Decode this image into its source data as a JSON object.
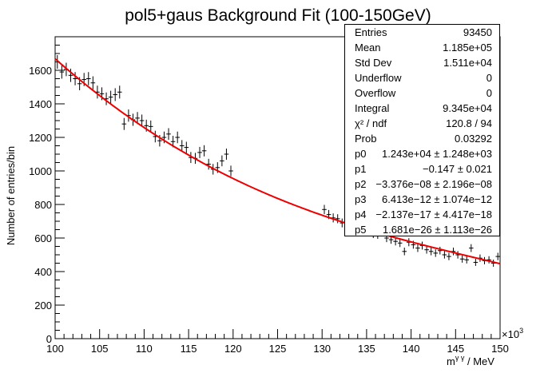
{
  "chart_data": {
    "type": "scatter",
    "title": "pol5+gaus Background Fit (100-150GeV)",
    "xlabel": "m",
    "xlabel_sup": "γ γ",
    "xlabel_unit": " / MeV",
    "ylabel": "Number of entries/bin",
    "x_exponent_base": "×10",
    "x_exponent": "3",
    "xlim": [
      100000,
      150000
    ],
    "ylim": [
      0,
      1800
    ],
    "x_ticks": [
      100,
      105,
      110,
      115,
      120,
      125,
      130,
      135,
      140,
      145,
      150
    ],
    "x_tick_step_minor": 1,
    "y_ticks": [
      0,
      200,
      400,
      600,
      800,
      1000,
      1200,
      1400,
      1600
    ],
    "y_tick_step_minor": 50,
    "grid": false,
    "legend": "top-right stats box",
    "colors": {
      "fit": "#ee0000",
      "points": "#000000"
    },
    "series": [
      {
        "type": "errorbar",
        "x": [
          100250,
          100750,
          101250,
          101750,
          102250,
          102750,
          103250,
          103750,
          104250,
          104750,
          105250,
          105750,
          106250,
          106750,
          107250,
          107750,
          108250,
          108750,
          109250,
          109750,
          110250,
          110750,
          111250,
          111750,
          112250,
          112750,
          113250,
          113750,
          114250,
          114750,
          115250,
          115750,
          116250,
          116750,
          117250,
          117750,
          118250,
          118750,
          119250,
          119750,
          130250,
          130750,
          131250,
          131750,
          132250,
          132750,
          133250,
          133750,
          134250,
          134750,
          135250,
          135750,
          136250,
          136750,
          137250,
          137750,
          138250,
          138750,
          139250,
          139750,
          140250,
          140750,
          141250,
          141750,
          142250,
          142750,
          143250,
          143750,
          144250,
          144750,
          145250,
          145750,
          146250,
          146750,
          147250,
          147750,
          148250,
          148750,
          149250,
          149750
        ],
        "y": [
          1650,
          1590,
          1605,
          1570,
          1550,
          1520,
          1545,
          1550,
          1525,
          1470,
          1460,
          1430,
          1440,
          1455,
          1470,
          1280,
          1330,
          1305,
          1315,
          1300,
          1270,
          1265,
          1205,
          1180,
          1200,
          1220,
          1175,
          1200,
          1150,
          1140,
          1080,
          1075,
          1110,
          1120,
          1040,
          1010,
          1020,
          1060,
          1100,
          1000,
          770,
          740,
          720,
          715,
          690,
          700,
          710,
          690,
          680,
          665,
          640,
          625,
          620,
          635,
          600,
          590,
          580,
          570,
          520,
          575,
          560,
          540,
          555,
          530,
          520,
          510,
          525,
          500,
          490,
          520,
          500,
          475,
          470,
          540,
          455,
          480,
          465,
          470,
          450,
          490
        ],
        "yerr_sqrt": true
      },
      {
        "type": "line",
        "function": "pol5",
        "params": [
          12430,
          -0.147,
          -3.376e-08,
          6.413e-12,
          -2.137e-17,
          1.681e-26
        ],
        "x_range": [
          100000,
          150000
        ],
        "visible_y": [
          1660,
          1560,
          1440,
          1330,
          1230,
          1140,
          1060,
          990,
          930,
          870,
          820,
          770,
          720,
          675,
          630,
          590,
          555,
          525,
          500,
          475,
          455
        ]
      }
    ]
  },
  "stats": [
    {
      "label": "Entries",
      "value": "93450"
    },
    {
      "label": "Mean",
      "value": "1.185e+05"
    },
    {
      "label": "Std Dev",
      "value": "1.511e+04"
    },
    {
      "label": "Underflow",
      "value": "0"
    },
    {
      "label": "Overflow",
      "value": "0"
    },
    {
      "label": "Integral",
      "value": "9.345e+04"
    },
    {
      "label": "χ² / ndf",
      "value": "120.8 / 94"
    },
    {
      "label": "Prob",
      "value": "0.03292"
    },
    {
      "label": "p0",
      "value": "1.243e+04 ± 1.248e+03"
    },
    {
      "label": "p1",
      "value": "−0.147 ± 0.021"
    },
    {
      "label": "p2",
      "value": "−3.376e−08 ± 2.196e−08"
    },
    {
      "label": "p3",
      "value": "6.413e−12 ± 1.074e−12"
    },
    {
      "label": "p4",
      "value": "−2.137e−17 ± 4.417e−18"
    },
    {
      "label": "p5",
      "value": "1.681e−26 ± 1.113e−26"
    }
  ]
}
